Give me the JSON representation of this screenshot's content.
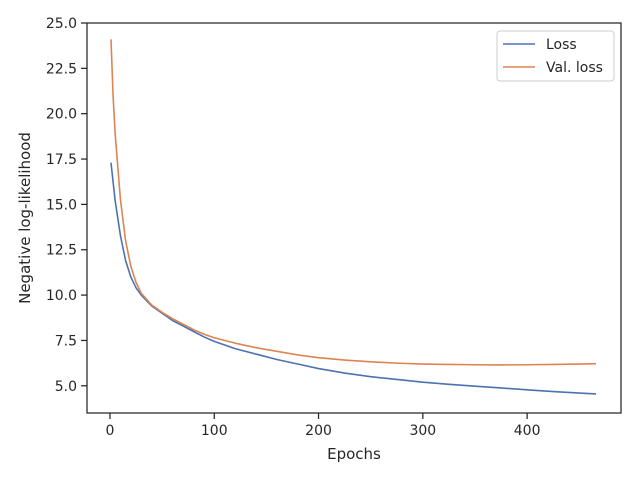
{
  "chart_data": {
    "type": "line",
    "title": "",
    "xlabel": "Epochs",
    "ylabel": "Negative log-likelihood",
    "xlim": [
      -22,
      490
    ],
    "ylim": [
      3.5,
      25
    ],
    "xticks": [
      0,
      100,
      200,
      300,
      400
    ],
    "yticks": [
      5.0,
      7.5,
      10.0,
      12.5,
      15.0,
      17.5,
      20.0,
      22.5,
      25.0
    ],
    "xtick_labels": [
      "0",
      "100",
      "200",
      "300",
      "400"
    ],
    "ytick_labels": [
      "5.0",
      "7.5",
      "10.0",
      "12.5",
      "15.0",
      "17.5",
      "20.0",
      "22.5",
      "25.0"
    ],
    "grid": false,
    "legend": "upper-right",
    "series": [
      {
        "name": "Loss",
        "color": "#4c72b0",
        "points": [
          [
            1,
            17.3
          ],
          [
            5,
            15.2
          ],
          [
            10,
            13.3
          ],
          [
            15,
            11.9
          ],
          [
            20,
            11.0
          ],
          [
            25,
            10.4
          ],
          [
            30,
            10.0
          ],
          [
            40,
            9.4
          ],
          [
            50,
            9.0
          ],
          [
            60,
            8.6
          ],
          [
            70,
            8.3
          ],
          [
            80,
            8.0
          ],
          [
            90,
            7.7
          ],
          [
            100,
            7.45
          ],
          [
            120,
            7.05
          ],
          [
            140,
            6.75
          ],
          [
            160,
            6.45
          ],
          [
            180,
            6.2
          ],
          [
            200,
            5.95
          ],
          [
            225,
            5.7
          ],
          [
            250,
            5.5
          ],
          [
            275,
            5.35
          ],
          [
            300,
            5.2
          ],
          [
            325,
            5.08
          ],
          [
            350,
            4.98
          ],
          [
            375,
            4.88
          ],
          [
            400,
            4.78
          ],
          [
            425,
            4.68
          ],
          [
            450,
            4.6
          ],
          [
            466,
            4.55
          ]
        ]
      },
      {
        "name": "Val. loss",
        "color": "#dd8452",
        "points": [
          [
            1,
            24.1
          ],
          [
            3,
            21.0
          ],
          [
            5,
            18.9
          ],
          [
            10,
            15.3
          ],
          [
            15,
            13.0
          ],
          [
            20,
            11.6
          ],
          [
            25,
            10.7
          ],
          [
            30,
            10.1
          ],
          [
            40,
            9.45
          ],
          [
            50,
            9.05
          ],
          [
            60,
            8.7
          ],
          [
            70,
            8.4
          ],
          [
            80,
            8.1
          ],
          [
            90,
            7.85
          ],
          [
            100,
            7.65
          ],
          [
            120,
            7.35
          ],
          [
            140,
            7.1
          ],
          [
            160,
            6.9
          ],
          [
            180,
            6.7
          ],
          [
            200,
            6.55
          ],
          [
            225,
            6.42
          ],
          [
            250,
            6.32
          ],
          [
            275,
            6.25
          ],
          [
            300,
            6.2
          ],
          [
            325,
            6.18
          ],
          [
            350,
            6.16
          ],
          [
            375,
            6.15
          ],
          [
            400,
            6.16
          ],
          [
            425,
            6.18
          ],
          [
            450,
            6.2
          ],
          [
            466,
            6.22
          ]
        ]
      }
    ]
  }
}
